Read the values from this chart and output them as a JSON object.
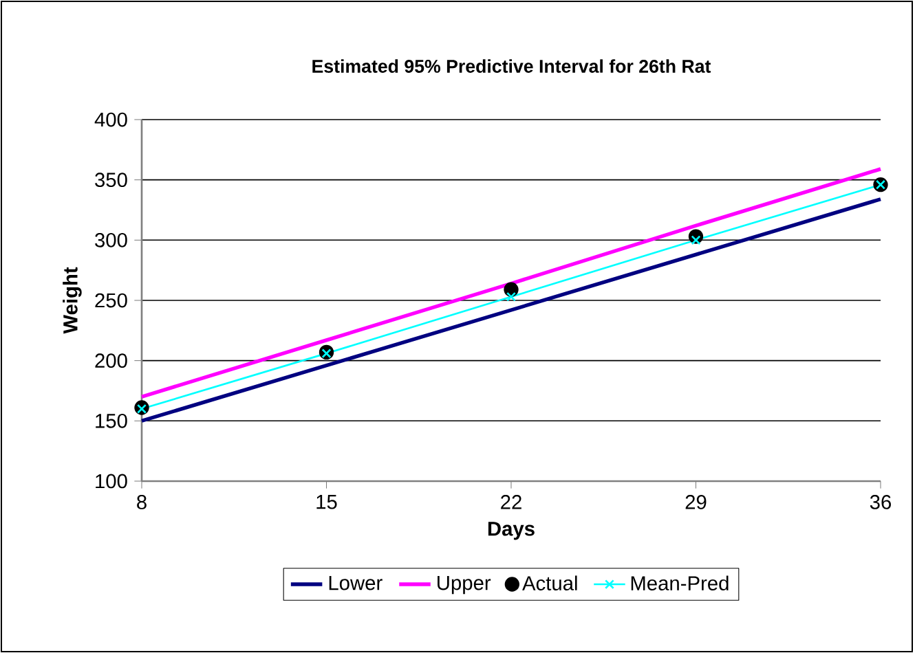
{
  "chart_data": {
    "type": "line",
    "title": "Estimated 95% Predictive Interval for 26th Rat",
    "xlabel": "Days",
    "ylabel": "Weight",
    "x": [
      8,
      15,
      22,
      29,
      36
    ],
    "series": [
      {
        "name": "Lower",
        "color": "#000080",
        "values": [
          150,
          196,
          242,
          288,
          334
        ],
        "marker": "none"
      },
      {
        "name": "Upper",
        "color": "#ff00ff",
        "values": [
          170,
          217,
          264,
          312,
          359
        ],
        "marker": "none"
      },
      {
        "name": "Actual",
        "type": "scatter",
        "color": "#000000",
        "values": [
          161,
          207,
          259,
          303,
          346
        ],
        "marker": "circle"
      },
      {
        "name": "Mean-Pred",
        "color": "#00ffff",
        "values": [
          160,
          206,
          253,
          300,
          346
        ],
        "marker": "cross"
      }
    ],
    "xlim": [
      8,
      36
    ],
    "xticks": [
      8,
      15,
      22,
      29,
      36
    ],
    "ylim": [
      100,
      400
    ],
    "yticks": [
      100,
      150,
      200,
      250,
      300,
      350,
      400
    ],
    "grid": "y",
    "legend": "bottom"
  }
}
